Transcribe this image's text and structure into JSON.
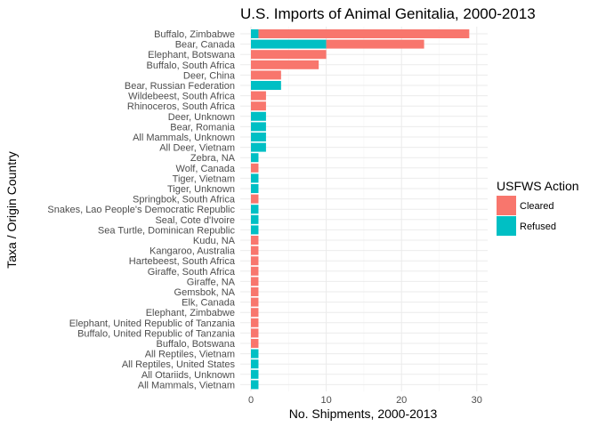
{
  "colors": {
    "cleared": "#F8766D",
    "refused": "#00BFC4",
    "grid_major": "#ebebeb",
    "grid_minor": "#f5f5f5"
  },
  "chart_data": {
    "type": "bar",
    "orientation": "horizontal",
    "stacked": true,
    "title": "U.S. Imports of Animal Genitalia, 2000-2013",
    "xlabel": "No. Shipments, 2000-2013",
    "ylabel": "Taxa / Origin Country",
    "xlim": [
      0,
      30
    ],
    "xticks": [
      0,
      10,
      20,
      30
    ],
    "grid": true,
    "legend": {
      "title": "USFWS Action",
      "position": "right",
      "entries": [
        "Cleared",
        "Refused"
      ]
    },
    "categories": [
      "Buffalo, Zimbabwe",
      "Bear, Canada",
      "Elephant, Botswana",
      "Buffalo, South Africa",
      "Deer, China",
      "Bear, Russian Federation",
      "Wildebeest, South Africa",
      "Rhinoceros, South Africa",
      "Deer, Unknown",
      "Bear, Romania",
      "All Mammals, Unknown",
      "All Deer, Vietnam",
      "Zebra, NA",
      "Wolf, Canada",
      "Tiger, Vietnam",
      "Tiger, Unknown",
      "Springbok, South Africa",
      "Snakes, Lao People's Democratic Republic",
      "Seal, Cote d'Ivoire",
      "Sea Turtle, Dominican Republic",
      "Kudu, NA",
      "Kangaroo, Australia",
      "Hartebeest, South Africa",
      "Giraffe, South Africa",
      "Giraffe, NA",
      "Gemsbok, NA",
      "Elk, Canada",
      "Elephant, Zimbabwe",
      "Elephant, United Republic of Tanzania",
      "Buffalo, United Republic of Tanzania",
      "Buffalo, Botswana",
      "All Reptiles, Vietnam",
      "All Reptiles, United States",
      "All Otariids, Unknown",
      "All Mammals, Vietnam"
    ],
    "series": [
      {
        "name": "Refused",
        "values": [
          1,
          10,
          0,
          0,
          0,
          4,
          0,
          0,
          2,
          2,
          2,
          2,
          1,
          0,
          1,
          1,
          0,
          1,
          1,
          1,
          0,
          0,
          0,
          0,
          0,
          0,
          0,
          0,
          0,
          0,
          0,
          1,
          1,
          1,
          1
        ]
      },
      {
        "name": "Cleared",
        "values": [
          28,
          13,
          10,
          9,
          4,
          0,
          2,
          2,
          0,
          0,
          0,
          0,
          0,
          1,
          0,
          0,
          1,
          0,
          0,
          0,
          1,
          1,
          1,
          1,
          1,
          1,
          1,
          1,
          1,
          1,
          1,
          0,
          0,
          0,
          0
        ]
      }
    ]
  }
}
